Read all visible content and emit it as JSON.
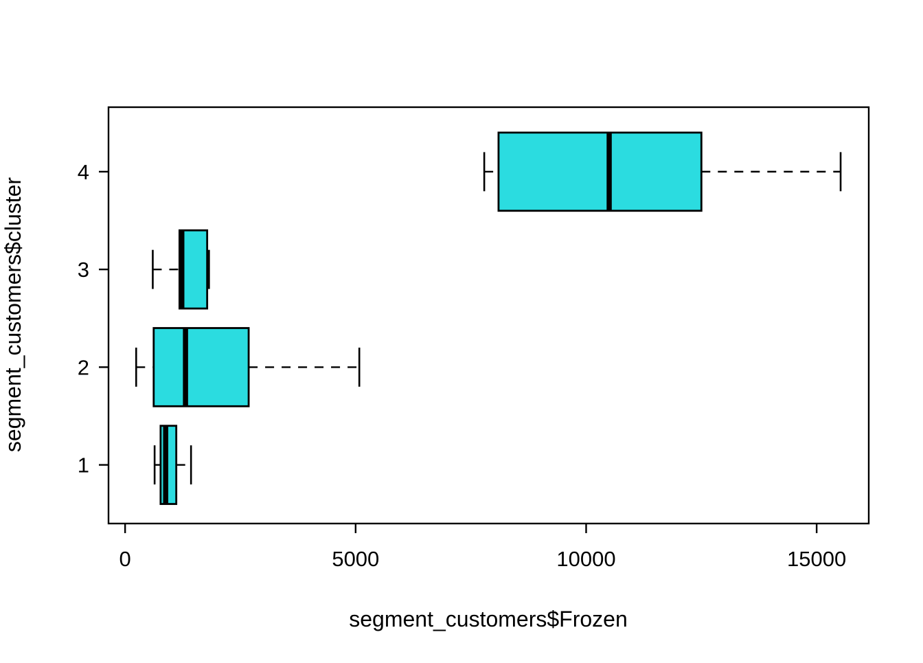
{
  "chart_data": {
    "type": "boxplot",
    "orientation": "horizontal",
    "title": "",
    "xlabel": "segment_customers$Frozen",
    "ylabel": "segment_customers$cluster",
    "x_ticks": [
      0,
      5000,
      10000,
      15000
    ],
    "x_tick_labels": [
      "0",
      "5000",
      "10000",
      "15000"
    ],
    "xlim": [
      -360,
      16130
    ],
    "ylim": [
      0.4,
      4.66
    ],
    "categories": [
      "1",
      "2",
      "3",
      "4"
    ],
    "boxes": [
      {
        "cluster": "1",
        "position": 1,
        "whisker_low": 640,
        "q1": 770,
        "median": 880,
        "q3": 1110,
        "whisker_high": 1430
      },
      {
        "cluster": "2",
        "position": 2,
        "whisker_low": 240,
        "q1": 620,
        "median": 1310,
        "q3": 2680,
        "whisker_high": 5080
      },
      {
        "cluster": "3",
        "position": 3,
        "whisker_low": 600,
        "q1": 1180,
        "median": 1230,
        "q3": 1780,
        "whisker_high": 1820
      },
      {
        "cluster": "4",
        "position": 4,
        "whisker_low": 7790,
        "q1": 8100,
        "median": 10500,
        "q3": 12500,
        "whisker_high": 15520
      }
    ],
    "box_width_units": 0.8,
    "cap_width_units": 0.4,
    "grid": false,
    "legend": null,
    "colors": {
      "box_fill": "#2BDCE0",
      "stroke": "#000000",
      "background": "#ffffff"
    }
  }
}
